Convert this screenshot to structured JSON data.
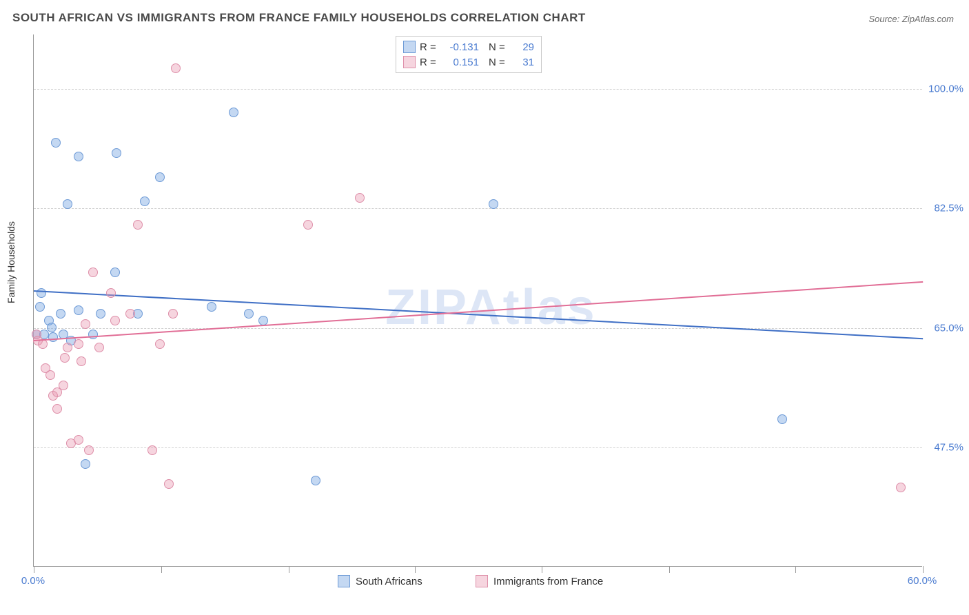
{
  "title": "SOUTH AFRICAN VS IMMIGRANTS FROM FRANCE FAMILY HOUSEHOLDS CORRELATION CHART",
  "source": "Source: ZipAtlas.com",
  "ylabel": "Family Households",
  "watermark": "ZIPAtlas",
  "chart": {
    "type": "scatter",
    "xlim": [
      0,
      60
    ],
    "ylim": [
      30,
      108
    ],
    "xtick_labels": {
      "start": "0.0%",
      "end": "60.0%"
    },
    "xtick_positions": [
      0,
      8.6,
      17.2,
      25.7,
      34.3,
      42.9,
      51.4,
      60
    ],
    "yticks": [
      47.5,
      65.0,
      82.5,
      100.0
    ],
    "ytick_labels": [
      "47.5%",
      "65.0%",
      "82.5%",
      "100.0%"
    ],
    "grid_color": "#d0d0d0",
    "background_color": "#ffffff",
    "series": [
      {
        "name": "South Africans",
        "fill_color": "rgba(125,168,227,0.45)",
        "stroke_color": "#6d9ad6",
        "trend_color": "#3f6fc5",
        "R": "-0.131",
        "N": "29",
        "trend": {
          "x1": 0,
          "y1": 70.5,
          "x2": 60,
          "y2": 63.5
        },
        "points": [
          [
            0.2,
            64
          ],
          [
            0.4,
            68
          ],
          [
            0.5,
            70
          ],
          [
            0.7,
            64
          ],
          [
            1.0,
            66
          ],
          [
            1.2,
            65
          ],
          [
            1.3,
            63.5
          ],
          [
            1.5,
            92
          ],
          [
            1.8,
            67
          ],
          [
            2.0,
            64
          ],
          [
            2.3,
            83
          ],
          [
            2.5,
            63
          ],
          [
            3.0,
            67.5
          ],
          [
            3.0,
            90
          ],
          [
            3.5,
            45
          ],
          [
            4.0,
            64
          ],
          [
            4.5,
            67
          ],
          [
            5.5,
            73
          ],
          [
            5.6,
            90.5
          ],
          [
            7.0,
            67
          ],
          [
            7.5,
            83.5
          ],
          [
            8.5,
            87
          ],
          [
            12.0,
            68
          ],
          [
            13.5,
            96.5
          ],
          [
            14.5,
            67
          ],
          [
            15.5,
            66
          ],
          [
            19.0,
            42.5
          ],
          [
            31.0,
            83
          ],
          [
            50.5,
            51.5
          ]
        ]
      },
      {
        "name": "Immigrants from France",
        "fill_color": "rgba(232,150,175,0.40)",
        "stroke_color": "#de8fa9",
        "trend_color": "#e16e96",
        "R": "0.151",
        "N": "31",
        "trend": {
          "x1": 0,
          "y1": 63.2,
          "x2": 60,
          "y2": 71.8
        },
        "points": [
          [
            0.2,
            64
          ],
          [
            0.3,
            63
          ],
          [
            0.6,
            62.5
          ],
          [
            0.8,
            59
          ],
          [
            1.1,
            58
          ],
          [
            1.3,
            55
          ],
          [
            1.6,
            55.5
          ],
          [
            1.6,
            53
          ],
          [
            2.0,
            56.5
          ],
          [
            2.1,
            60.5
          ],
          [
            2.3,
            62
          ],
          [
            2.5,
            48
          ],
          [
            3.0,
            48.5
          ],
          [
            3.0,
            62.5
          ],
          [
            3.2,
            60
          ],
          [
            3.7,
            47
          ],
          [
            3.5,
            65.5
          ],
          [
            4.0,
            73
          ],
          [
            4.4,
            62
          ],
          [
            5.2,
            70
          ],
          [
            5.5,
            66
          ],
          [
            6.5,
            67
          ],
          [
            7.0,
            80
          ],
          [
            8.0,
            47
          ],
          [
            8.5,
            62.5
          ],
          [
            9.1,
            42
          ],
          [
            9.4,
            67
          ],
          [
            9.6,
            103
          ],
          [
            18.5,
            80
          ],
          [
            22.0,
            84
          ],
          [
            58.5,
            41.5
          ]
        ]
      }
    ]
  },
  "legend_bottom": {
    "item1": "South Africans",
    "item2": "Immigrants from France"
  }
}
